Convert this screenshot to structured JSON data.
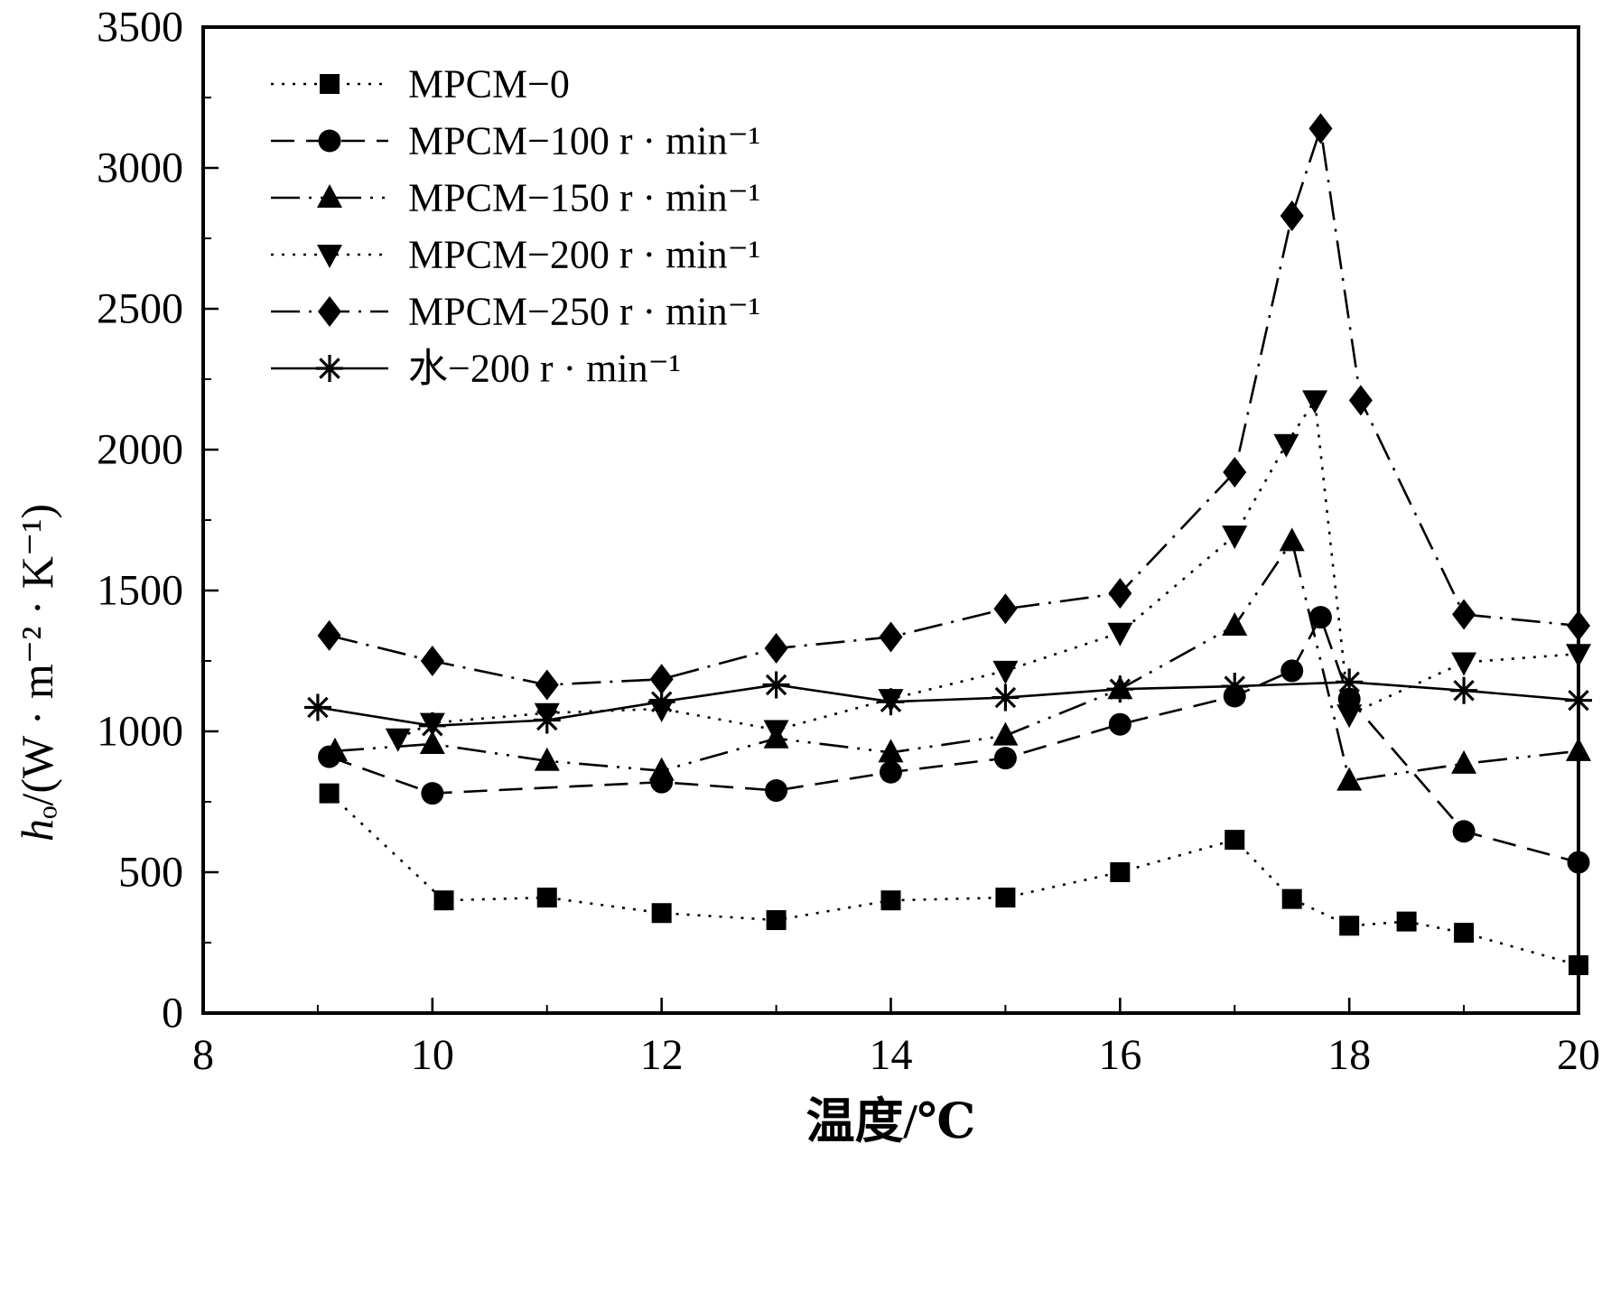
{
  "figure": {
    "background": "#ffffff",
    "foreground": "#000000"
  },
  "chart_data": {
    "type": "line",
    "title": "",
    "xlabel": "温度/℃",
    "ylabel": "hₒ/(W · m⁻² · K⁻¹)",
    "xlim": [
      8,
      20
    ],
    "ylim": [
      0,
      3500
    ],
    "x_major_ticks": [
      8,
      10,
      12,
      14,
      16,
      18,
      20
    ],
    "x_minor_step": 1,
    "y_major_ticks": [
      0,
      500,
      1000,
      1500,
      2000,
      2500,
      3000,
      3500
    ],
    "y_minor_step": 250,
    "grid": false,
    "legend_position": "top-left",
    "series": [
      {
        "name": "MPCM−0",
        "marker": "square",
        "line_style": "dot",
        "points": [
          [
            9.1,
            780
          ],
          [
            10.1,
            400
          ],
          [
            11,
            410
          ],
          [
            12,
            355
          ],
          [
            13,
            330
          ],
          [
            14,
            400
          ],
          [
            15,
            410
          ],
          [
            16,
            500
          ],
          [
            17,
            615
          ],
          [
            17.5,
            405
          ],
          [
            18,
            310
          ],
          [
            18.5,
            325
          ],
          [
            19,
            285
          ],
          [
            20,
            170
          ]
        ]
      },
      {
        "name": "MPCM−100 r · min⁻¹",
        "marker": "circle",
        "line_style": "dash",
        "points": [
          [
            9.1,
            910
          ],
          [
            10,
            780
          ],
          [
            12,
            820
          ],
          [
            13,
            790
          ],
          [
            14,
            855
          ],
          [
            15,
            905
          ],
          [
            16,
            1025
          ],
          [
            17,
            1125
          ],
          [
            17.5,
            1215
          ],
          [
            17.75,
            1405
          ],
          [
            18,
            1115
          ],
          [
            19,
            645
          ],
          [
            20,
            535
          ]
        ]
      },
      {
        "name": "MPCM−150 r · min⁻¹",
        "marker": "triangle-up",
        "line_style": "dash-dot-dot",
        "points": [
          [
            9.15,
            930
          ],
          [
            10,
            955
          ],
          [
            11,
            895
          ],
          [
            12,
            860
          ],
          [
            13,
            975
          ],
          [
            14,
            925
          ],
          [
            15,
            985
          ],
          [
            16,
            1150
          ],
          [
            17,
            1375
          ],
          [
            17.5,
            1675
          ],
          [
            18,
            825
          ],
          [
            19,
            885
          ],
          [
            20,
            930
          ]
        ]
      },
      {
        "name": "MPCM−200 r · min⁻¹",
        "marker": "triangle-down",
        "line_style": "dot",
        "points": [
          [
            9.7,
            975
          ],
          [
            10,
            1030
          ],
          [
            11,
            1065
          ],
          [
            12,
            1080
          ],
          [
            13,
            1005
          ],
          [
            14,
            1115
          ],
          [
            15,
            1215
          ],
          [
            16,
            1350
          ],
          [
            17,
            1695
          ],
          [
            17.45,
            2020
          ],
          [
            17.7,
            2175
          ],
          [
            18,
            1060
          ],
          [
            19,
            1245
          ],
          [
            20,
            1275
          ]
        ]
      },
      {
        "name": "MPCM−250 r · min⁻¹",
        "marker": "diamond",
        "line_style": "dash-dot",
        "points": [
          [
            9.1,
            1340
          ],
          [
            10,
            1250
          ],
          [
            11,
            1165
          ],
          [
            12,
            1185
          ],
          [
            13,
            1295
          ],
          [
            14,
            1335
          ],
          [
            15,
            1435
          ],
          [
            16,
            1490
          ],
          [
            17,
            1920
          ],
          [
            17.5,
            2830
          ],
          [
            17.75,
            3140
          ],
          [
            18.1,
            2175
          ],
          [
            19,
            1415
          ],
          [
            20,
            1375
          ]
        ]
      },
      {
        "name": "水−200 r · min⁻¹",
        "marker": "asterisk",
        "line_style": "solid",
        "points": [
          [
            9,
            1085
          ],
          [
            10,
            1020
          ],
          [
            11,
            1040
          ],
          [
            12,
            1105
          ],
          [
            13,
            1165
          ],
          [
            14,
            1105
          ],
          [
            15,
            1120
          ],
          [
            16,
            1150
          ],
          [
            17,
            1160
          ],
          [
            18,
            1175
          ],
          [
            19,
            1145
          ],
          [
            20,
            1110
          ]
        ]
      }
    ]
  }
}
